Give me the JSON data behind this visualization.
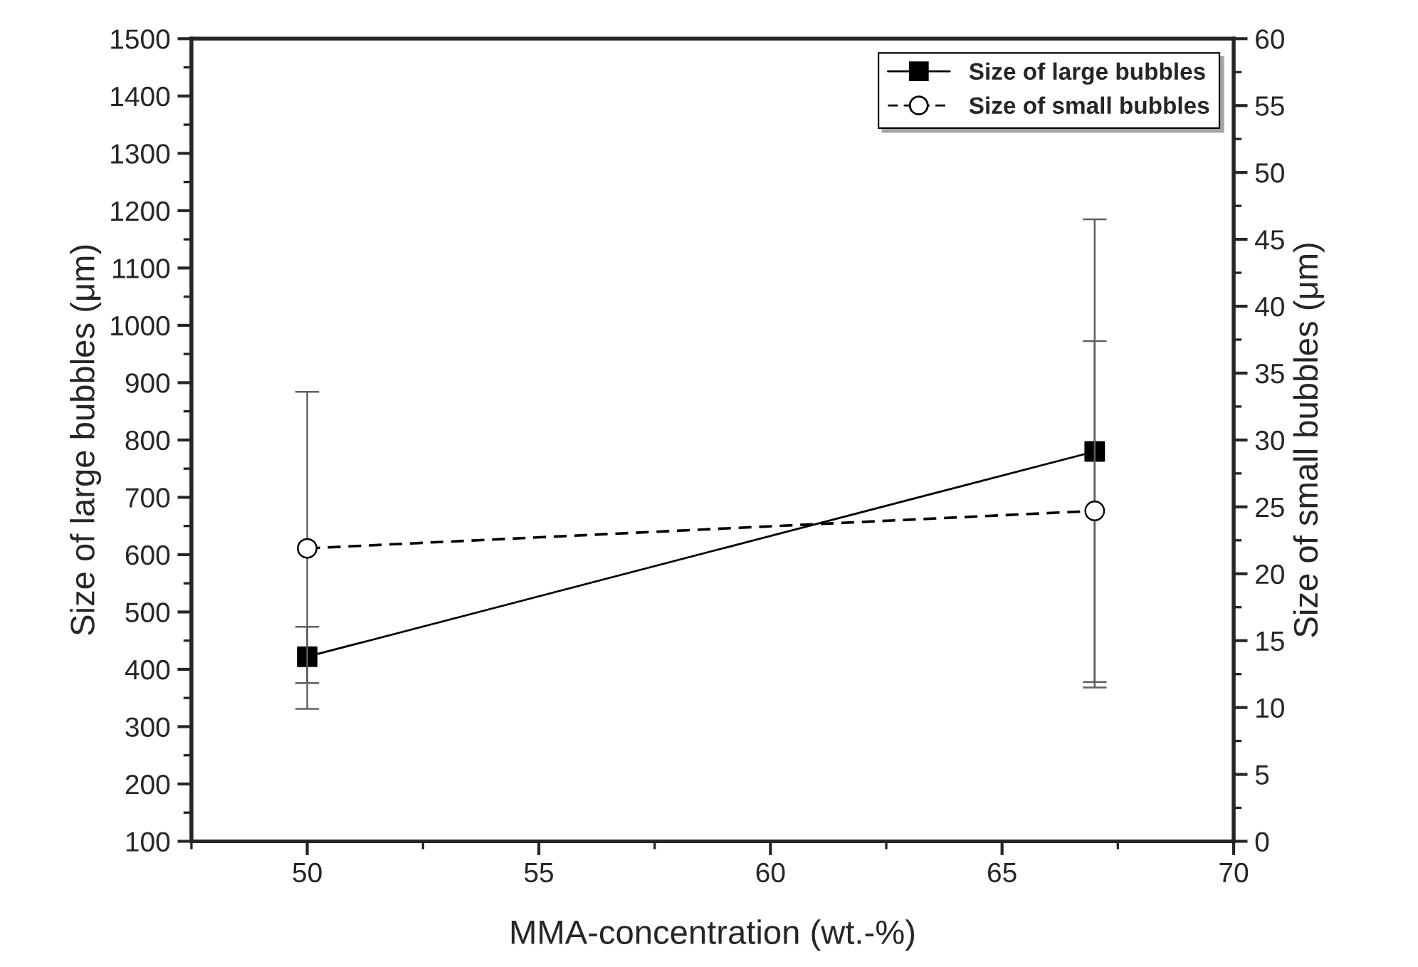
{
  "chart_data": {
    "type": "line",
    "xlabel": "MMA-concentration (wt.-%)",
    "ylabel": "Size of large bubbles (μm)",
    "y2label": "Size of small bubbles (μm)",
    "x": [
      50,
      67
    ],
    "series": [
      {
        "name": "Size of large bubbles",
        "color": "#000000",
        "values": [
          422,
          780
        ],
        "errors": [
          [
            376,
            474
          ],
          [
            378,
            1185
          ]
        ],
        "marker": "square",
        "line_style": "solid"
      },
      {
        "name": "Size of small bubbles",
        "color": "#000000",
        "values": [
          21.9,
          24.7
        ],
        "errors": [
          [
            9.9,
            33.6
          ],
          [
            11.5,
            37.4
          ]
        ],
        "marker": "circle",
        "line_style": "dashed",
        "axis": "y2"
      }
    ],
    "xlim": [
      47.5,
      70
    ],
    "xticks": [
      50,
      55,
      60,
      65,
      70
    ],
    "ylim": [
      100,
      1500
    ],
    "yticks": [
      100,
      200,
      300,
      400,
      500,
      600,
      700,
      800,
      900,
      1000,
      1100,
      1200,
      1300,
      1400,
      1500
    ],
    "y2lim": [
      0,
      60
    ],
    "y2ticks": [
      0,
      5,
      10,
      15,
      20,
      25,
      30,
      35,
      40,
      45,
      50,
      55,
      60
    ],
    "grid": false,
    "legend": "top right"
  }
}
